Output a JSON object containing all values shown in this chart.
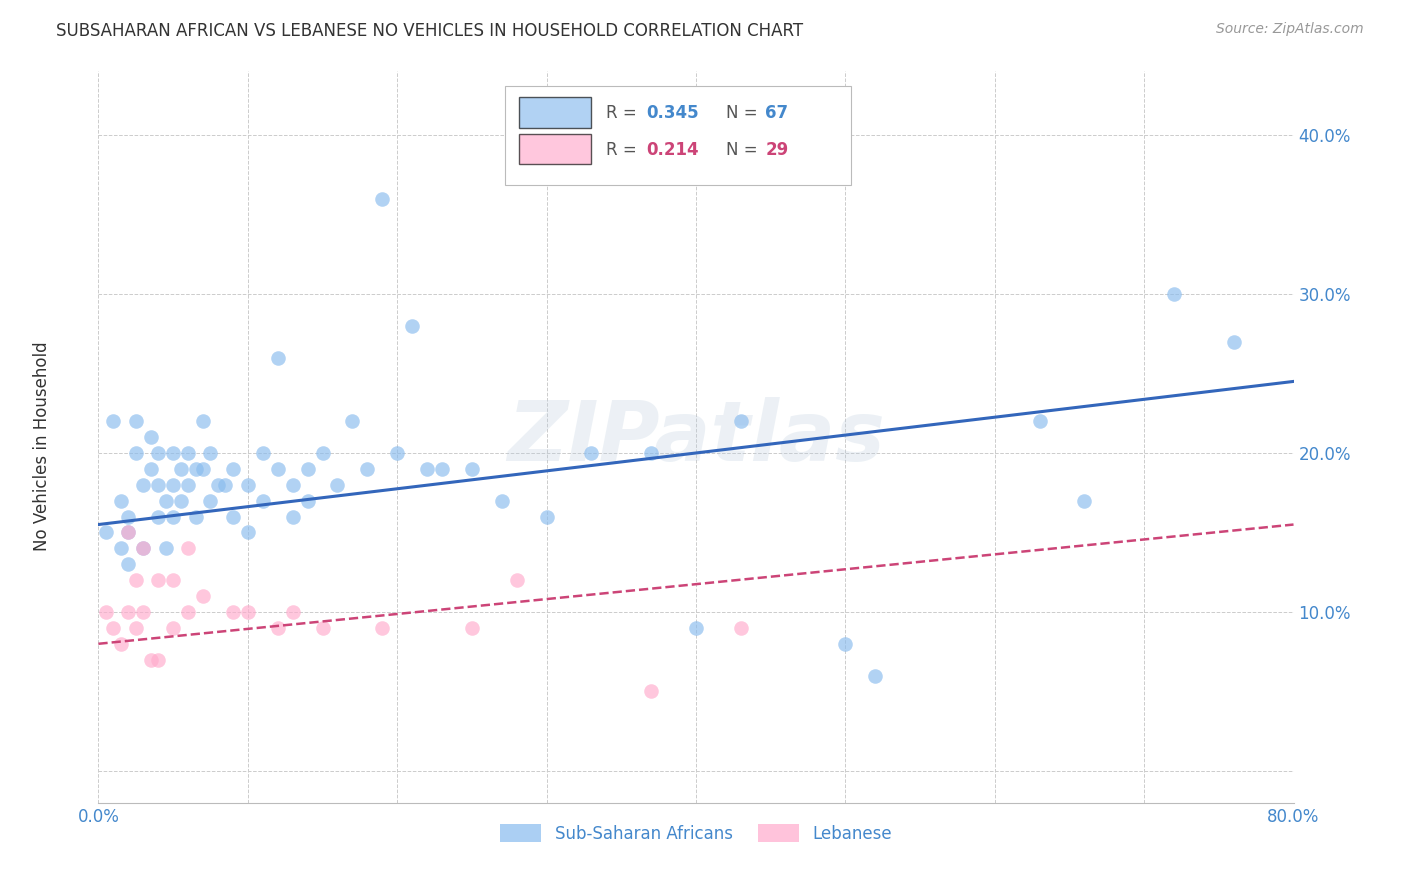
{
  "title": "SUBSAHARAN AFRICAN VS LEBANESE NO VEHICLES IN HOUSEHOLD CORRELATION CHART",
  "source": "Source: ZipAtlas.com",
  "xlim": [
    0.0,
    0.8
  ],
  "ylim": [
    -0.02,
    0.44
  ],
  "ylabel": "No Vehicles in Household",
  "blue_color": "#88BBEE",
  "pink_color": "#FFAACC",
  "blue_line_color": "#3366BB",
  "pink_line_color": "#CC4477",
  "text_color": "#4488CC",
  "grid_color": "#CCCCCC",
  "background_color": "#FFFFFF",
  "watermark": "ZIPatlas",
  "blue_scatter_x": [
    0.005,
    0.01,
    0.015,
    0.015,
    0.02,
    0.02,
    0.02,
    0.025,
    0.025,
    0.03,
    0.03,
    0.035,
    0.035,
    0.04,
    0.04,
    0.04,
    0.045,
    0.045,
    0.05,
    0.05,
    0.05,
    0.055,
    0.055,
    0.06,
    0.06,
    0.065,
    0.065,
    0.07,
    0.07,
    0.075,
    0.075,
    0.08,
    0.085,
    0.09,
    0.09,
    0.1,
    0.1,
    0.11,
    0.11,
    0.12,
    0.12,
    0.13,
    0.13,
    0.14,
    0.14,
    0.15,
    0.16,
    0.17,
    0.18,
    0.19,
    0.2,
    0.21,
    0.22,
    0.23,
    0.25,
    0.27,
    0.3,
    0.33,
    0.37,
    0.4,
    0.43,
    0.5,
    0.52,
    0.63,
    0.66,
    0.72,
    0.76
  ],
  "blue_scatter_y": [
    0.15,
    0.22,
    0.17,
    0.14,
    0.16,
    0.15,
    0.13,
    0.22,
    0.2,
    0.18,
    0.14,
    0.21,
    0.19,
    0.2,
    0.18,
    0.16,
    0.17,
    0.14,
    0.2,
    0.18,
    0.16,
    0.19,
    0.17,
    0.2,
    0.18,
    0.19,
    0.16,
    0.22,
    0.19,
    0.2,
    0.17,
    0.18,
    0.18,
    0.19,
    0.16,
    0.18,
    0.15,
    0.2,
    0.17,
    0.26,
    0.19,
    0.18,
    0.16,
    0.19,
    0.17,
    0.2,
    0.18,
    0.22,
    0.19,
    0.36,
    0.2,
    0.28,
    0.19,
    0.19,
    0.19,
    0.17,
    0.16,
    0.2,
    0.2,
    0.09,
    0.22,
    0.08,
    0.06,
    0.22,
    0.17,
    0.3,
    0.27
  ],
  "pink_scatter_x": [
    0.005,
    0.01,
    0.015,
    0.02,
    0.02,
    0.025,
    0.025,
    0.03,
    0.03,
    0.035,
    0.04,
    0.04,
    0.05,
    0.05,
    0.06,
    0.06,
    0.07,
    0.09,
    0.1,
    0.12,
    0.13,
    0.15,
    0.19,
    0.25,
    0.28,
    0.37,
    0.43
  ],
  "pink_scatter_y": [
    0.1,
    0.09,
    0.08,
    0.15,
    0.1,
    0.12,
    0.09,
    0.14,
    0.1,
    0.07,
    0.12,
    0.07,
    0.12,
    0.09,
    0.14,
    0.1,
    0.11,
    0.1,
    0.1,
    0.09,
    0.1,
    0.09,
    0.09,
    0.09,
    0.12,
    0.05,
    0.09
  ],
  "blue_line_x0": 0.0,
  "blue_line_x1": 0.8,
  "blue_line_y0": 0.155,
  "blue_line_y1": 0.245,
  "pink_line_x0": 0.0,
  "pink_line_x1": 0.8,
  "pink_line_y0": 0.08,
  "pink_line_y1": 0.155
}
